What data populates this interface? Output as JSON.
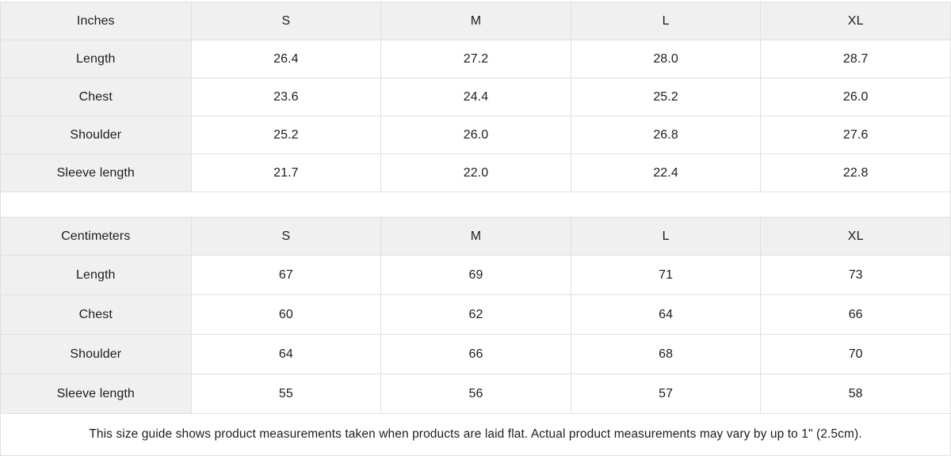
{
  "colors": {
    "header_bg": "#f0f0f0",
    "border": "#e0e0e0",
    "text": "#1d1d1f",
    "page_bg": "#ffffff"
  },
  "tables": [
    {
      "unit_label": "Inches",
      "sizes": [
        "S",
        "M",
        "L",
        "XL"
      ],
      "rows": [
        {
          "label": "Length",
          "values": [
            "26.4",
            "27.2",
            "28.0",
            "28.7"
          ]
        },
        {
          "label": "Chest",
          "values": [
            "23.6",
            "24.4",
            "25.2",
            "26.0"
          ]
        },
        {
          "label": "Shoulder",
          "values": [
            "25.2",
            "26.0",
            "26.8",
            "27.6"
          ]
        },
        {
          "label": "Sleeve length",
          "values": [
            "21.7",
            "22.0",
            "22.4",
            "22.8"
          ]
        }
      ]
    },
    {
      "unit_label": "Centimeters",
      "sizes": [
        "S",
        "M",
        "L",
        "XL"
      ],
      "rows": [
        {
          "label": "Length",
          "values": [
            "67",
            "69",
            "71",
            "73"
          ]
        },
        {
          "label": "Chest",
          "values": [
            "60",
            "62",
            "64",
            "66"
          ]
        },
        {
          "label": "Shoulder",
          "values": [
            "64",
            "66",
            "68",
            "70"
          ]
        },
        {
          "label": "Sleeve length",
          "values": [
            "55",
            "56",
            "57",
            "58"
          ]
        }
      ]
    }
  ],
  "note": "This size guide shows product measurements taken when products are laid flat.  Actual product measurements may vary by up to 1\" (2.5cm)."
}
